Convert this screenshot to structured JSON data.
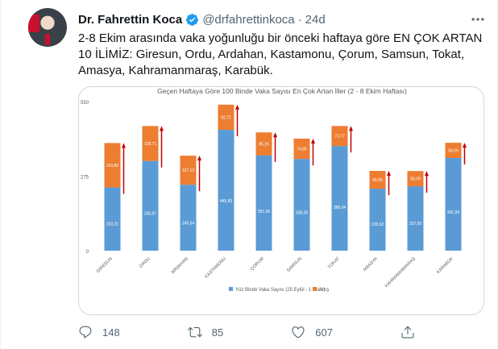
{
  "tweet": {
    "name": "Dr. Fahrettin Koca",
    "handle": "@drfahrettinkoca",
    "separator": "·",
    "time": "24d",
    "text": "2-8 Ekim arasında vaka yoğunluğu bir önceki haftaya göre EN ÇOK ARTAN 10 İLİMİZ: Giresun, Ordu, Ardahan, Kastamonu, Çorum, Samsun, Tokat, Amasya, Kahramanmaraş, Karabük.",
    "more_icon": "more-icon",
    "verified_icon": "verified-badge-icon"
  },
  "actions": {
    "reply_count": "148",
    "retweet_count": "85",
    "like_count": "607"
  },
  "colors": {
    "base": "#5b9bd5",
    "increase": "#ed7d31",
    "arrow": "#c00000",
    "verified": "#1d9bf0"
  },
  "chart_data": {
    "type": "bar",
    "stacked": true,
    "title": "Geçen Haftaya Göre 100 Binde Vaka Sayısı En Çok Artan İller (2 - 8 Ekim Haftası)",
    "categories": [
      "GİRESUN",
      "ORDU",
      "ARDAHAN",
      "KASTAMONU",
      "ÇORUM",
      "SAMSUN",
      "TOKAT",
      "AMASYA",
      "KAHRAMANMARAŞ",
      "KARABÜK"
    ],
    "series": [
      {
        "name": "Yüz Binde Vaka Sayısı (25 Eylül - 1 Ekim)",
        "values": [
          233.21,
          330.97,
          243.34,
          445.83,
          351.05,
          338.35,
          386.04,
          228.62,
          237.55,
          341.93
        ]
      },
      {
        "name": "Artış",
        "values": [
          163.8,
          128.71,
          107.12,
          92.72,
          85.26,
          74.85,
          73.77,
          65.65,
          56.09,
          56.09
        ]
      }
    ],
    "base_labels": [
      "233,21",
      "330,97",
      "243,34",
      "445,83",
      "351,05",
      "338,35",
      "386,04",
      "228,62",
      "237,55",
      "341,93"
    ],
    "increase_labels": [
      "163,80",
      "128,71",
      "107,12",
      "92,72",
      "85,26",
      "74,85",
      "73,77",
      "65,65",
      "56,09",
      "56,09"
    ],
    "yticks": [
      0,
      275,
      550
    ],
    "ylim": [
      0,
      550
    ],
    "legend_position": "bottom",
    "grid": false,
    "arrows": true
  }
}
